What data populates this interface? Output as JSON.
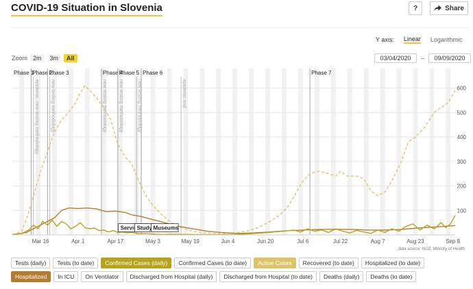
{
  "title": "COVID-19 Situation in Slovenia",
  "toolbar": {
    "help_label": "?",
    "share_label": "Share"
  },
  "yaxis": {
    "label": "Y axis:",
    "linear": "Linear",
    "log": "Logarithmic",
    "selected": "Linear"
  },
  "zoom": {
    "label": "Zoom",
    "options": [
      "2m",
      "3m",
      "All"
    ],
    "selected": "All"
  },
  "range": {
    "from": "03/04/2020",
    "sep": "–",
    "to": "09/09/2020"
  },
  "series_buttons": [
    {
      "label": "Tests (daily)",
      "on": false,
      "color": ""
    },
    {
      "label": "Tests (to date)",
      "on": false,
      "color": ""
    },
    {
      "label": "Confirmed Cases (daily)",
      "on": true,
      "color": "#b8a31c"
    },
    {
      "label": "Confirmed Cases (to date)",
      "on": false,
      "color": ""
    },
    {
      "label": "Active Cases",
      "on": true,
      "color": "#ddc46a"
    },
    {
      "label": "Recovered (to date)",
      "on": false,
      "color": ""
    },
    {
      "label": "Hospitalized (to date)",
      "on": false,
      "color": ""
    },
    {
      "label": "Hospitalized",
      "on": true,
      "color": "#b77b30"
    },
    {
      "label": "In ICU",
      "on": false,
      "color": ""
    },
    {
      "label": "On Ventilator",
      "on": false,
      "color": ""
    },
    {
      "label": "Discharged from Hospital (daily)",
      "on": false,
      "color": ""
    },
    {
      "label": "Discharged from Hospital (to date)",
      "on": false,
      "color": ""
    },
    {
      "label": "Deaths (daily)",
      "on": false,
      "color": ""
    },
    {
      "label": "Deaths (to date)",
      "on": false,
      "color": ""
    }
  ],
  "chart_data": {
    "type": "line",
    "x_start": "2020-03-04",
    "x_end": "2020-09-09",
    "ylim": [
      0,
      680
    ],
    "yticks": [
      100,
      200,
      300,
      400,
      500,
      600
    ],
    "xticks": [
      {
        "label": "Mar 16",
        "date": "2020-03-16"
      },
      {
        "label": "Apr 1",
        "date": "2020-04-01"
      },
      {
        "label": "Apr 17",
        "date": "2020-04-17"
      },
      {
        "label": "May 3",
        "date": "2020-05-03"
      },
      {
        "label": "May 19",
        "date": "2020-05-19"
      },
      {
        "label": "Jun 4",
        "date": "2020-06-04"
      },
      {
        "label": "Jun 20",
        "date": "2020-06-20"
      },
      {
        "label": "Jul 6",
        "date": "2020-07-06"
      },
      {
        "label": "Jul 22",
        "date": "2020-07-22"
      },
      {
        "label": "Aug 7",
        "date": "2020-08-07"
      },
      {
        "label": "Aug 23",
        "date": "2020-08-23"
      },
      {
        "label": "Sep 8",
        "date": "2020-09-08"
      }
    ],
    "source": "data source: NIJZ, Ministry of Health",
    "phases": [
      {
        "label": "Phase 1",
        "date": "2020-03-04"
      },
      {
        "label": "Phase 2",
        "date": "2020-03-12"
      },
      {
        "label": "Phase 3",
        "date": "2020-03-19"
      },
      {
        "label": "Phase 4",
        "date": "2020-04-11"
      },
      {
        "label": "Phase 5",
        "date": "2020-04-18"
      },
      {
        "label": "Phase 6",
        "date": "2020-04-28"
      },
      {
        "label": "Phase 7",
        "date": "2020-07-09"
      }
    ],
    "event_lines": [
      {
        "label": "epidemic, new testing methodology",
        "date": "2020-03-13"
      },
      {
        "label": "new testing methodology",
        "date": "2020-03-20"
      },
      {
        "label": "new testing methodology",
        "date": "2020-04-11"
      },
      {
        "label": "new testing methodology",
        "date": "2020-04-18"
      },
      {
        "label": "new testing methodology",
        "date": "2020-04-26"
      },
      {
        "label": "epidemic end",
        "date": "2020-05-15"
      }
    ],
    "reopen_labels": [
      {
        "label": "Services",
        "date": "2020-04-20"
      },
      {
        "label": "Study",
        "date": "2020-04-27"
      },
      {
        "label": "Museums",
        "date": "2020-05-04"
      }
    ],
    "series": [
      {
        "name": "Active Cases",
        "color": "#ddc46a",
        "dash": true,
        "points": [
          [
            "2020-03-04",
            0
          ],
          [
            "2020-03-08",
            15
          ],
          [
            "2020-03-11",
            90
          ],
          [
            "2020-03-13",
            160
          ],
          [
            "2020-03-16",
            260
          ],
          [
            "2020-03-19",
            340
          ],
          [
            "2020-03-22",
            420
          ],
          [
            "2020-03-25",
            470
          ],
          [
            "2020-03-28",
            500
          ],
          [
            "2020-03-31",
            540
          ],
          [
            "2020-04-02",
            580
          ],
          [
            "2020-04-04",
            610
          ],
          [
            "2020-04-06",
            590
          ],
          [
            "2020-04-09",
            560
          ],
          [
            "2020-04-12",
            520
          ],
          [
            "2020-04-15",
            470
          ],
          [
            "2020-04-18",
            370
          ],
          [
            "2020-04-21",
            320
          ],
          [
            "2020-04-24",
            290
          ],
          [
            "2020-04-27",
            220
          ],
          [
            "2020-04-30",
            160
          ],
          [
            "2020-05-03",
            120
          ],
          [
            "2020-05-07",
            80
          ],
          [
            "2020-05-11",
            50
          ],
          [
            "2020-05-15",
            30
          ],
          [
            "2020-05-20",
            15
          ],
          [
            "2020-05-25",
            8
          ],
          [
            "2020-06-01",
            5
          ],
          [
            "2020-06-07",
            8
          ],
          [
            "2020-06-12",
            15
          ],
          [
            "2020-06-17",
            30
          ],
          [
            "2020-06-22",
            55
          ],
          [
            "2020-06-26",
            80
          ],
          [
            "2020-06-30",
            120
          ],
          [
            "2020-07-03",
            170
          ],
          [
            "2020-07-06",
            220
          ],
          [
            "2020-07-09",
            250
          ],
          [
            "2020-07-13",
            260
          ],
          [
            "2020-07-17",
            250
          ],
          [
            "2020-07-20",
            240
          ],
          [
            "2020-07-22",
            260
          ],
          [
            "2020-07-25",
            240
          ],
          [
            "2020-07-29",
            240
          ],
          [
            "2020-08-01",
            230
          ],
          [
            "2020-08-04",
            180
          ],
          [
            "2020-08-07",
            160
          ],
          [
            "2020-08-10",
            175
          ],
          [
            "2020-08-13",
            220
          ],
          [
            "2020-08-17",
            300
          ],
          [
            "2020-08-20",
            380
          ],
          [
            "2020-08-23",
            400
          ],
          [
            "2020-08-27",
            440
          ],
          [
            "2020-08-31",
            500
          ],
          [
            "2020-09-03",
            520
          ],
          [
            "2020-09-06",
            540
          ],
          [
            "2020-09-09",
            590
          ]
        ]
      },
      {
        "name": "Hospitalized",
        "color": "#b77b30",
        "dash": false,
        "points": [
          [
            "2020-03-04",
            0
          ],
          [
            "2020-03-10",
            10
          ],
          [
            "2020-03-14",
            30
          ],
          [
            "2020-03-18",
            50
          ],
          [
            "2020-03-22",
            70
          ],
          [
            "2020-03-25",
            100
          ],
          [
            "2020-03-28",
            110
          ],
          [
            "2020-04-01",
            108
          ],
          [
            "2020-04-05",
            110
          ],
          [
            "2020-04-09",
            106
          ],
          [
            "2020-04-13",
            95
          ],
          [
            "2020-04-17",
            97
          ],
          [
            "2020-04-21",
            92
          ],
          [
            "2020-04-24",
            82
          ],
          [
            "2020-04-28",
            75
          ],
          [
            "2020-05-02",
            65
          ],
          [
            "2020-05-06",
            55
          ],
          [
            "2020-05-10",
            45
          ],
          [
            "2020-05-14",
            35
          ],
          [
            "2020-05-20",
            25
          ],
          [
            "2020-05-26",
            15
          ],
          [
            "2020-06-01",
            10
          ],
          [
            "2020-06-08",
            6
          ],
          [
            "2020-06-15",
            8
          ],
          [
            "2020-06-22",
            12
          ],
          [
            "2020-06-29",
            17
          ],
          [
            "2020-07-06",
            20
          ],
          [
            "2020-07-13",
            22
          ],
          [
            "2020-07-20",
            23
          ],
          [
            "2020-07-27",
            22
          ],
          [
            "2020-08-03",
            20
          ],
          [
            "2020-08-10",
            20
          ],
          [
            "2020-08-17",
            22
          ],
          [
            "2020-08-24",
            28
          ],
          [
            "2020-08-31",
            32
          ],
          [
            "2020-09-09",
            38
          ]
        ]
      },
      {
        "name": "Confirmed Cases (daily)",
        "color": "#b8a31c",
        "dash": false,
        "points": [
          [
            "2020-03-04",
            2
          ],
          [
            "2020-03-08",
            6
          ],
          [
            "2020-03-11",
            20
          ],
          [
            "2020-03-13",
            40
          ],
          [
            "2020-03-15",
            25
          ],
          [
            "2020-03-17",
            55
          ],
          [
            "2020-03-19",
            40
          ],
          [
            "2020-03-21",
            60
          ],
          [
            "2020-03-23",
            35
          ],
          [
            "2020-03-25",
            55
          ],
          [
            "2020-03-27",
            45
          ],
          [
            "2020-03-29",
            25
          ],
          [
            "2020-03-31",
            35
          ],
          [
            "2020-04-02",
            50
          ],
          [
            "2020-04-04",
            30
          ],
          [
            "2020-04-06",
            25
          ],
          [
            "2020-04-08",
            28
          ],
          [
            "2020-04-10",
            18
          ],
          [
            "2020-04-12",
            20
          ],
          [
            "2020-04-14",
            12
          ],
          [
            "2020-04-16",
            18
          ],
          [
            "2020-04-18",
            10
          ],
          [
            "2020-04-20",
            12
          ],
          [
            "2020-04-22",
            8
          ],
          [
            "2020-04-24",
            10
          ],
          [
            "2020-04-27",
            5
          ],
          [
            "2020-04-30",
            6
          ],
          [
            "2020-05-04",
            3
          ],
          [
            "2020-05-08",
            2
          ],
          [
            "2020-05-12",
            3
          ],
          [
            "2020-05-18",
            2
          ],
          [
            "2020-05-25",
            1
          ],
          [
            "2020-06-01",
            1
          ],
          [
            "2020-06-08",
            2
          ],
          [
            "2020-06-14",
            5
          ],
          [
            "2020-06-19",
            8
          ],
          [
            "2020-06-24",
            12
          ],
          [
            "2020-06-28",
            15
          ],
          [
            "2020-07-02",
            20
          ],
          [
            "2020-07-05",
            12
          ],
          [
            "2020-07-08",
            25
          ],
          [
            "2020-07-11",
            15
          ],
          [
            "2020-07-14",
            20
          ],
          [
            "2020-07-17",
            10
          ],
          [
            "2020-07-20",
            25
          ],
          [
            "2020-07-23",
            15
          ],
          [
            "2020-07-26",
            8
          ],
          [
            "2020-07-29",
            18
          ],
          [
            "2020-08-01",
            12
          ],
          [
            "2020-08-04",
            6
          ],
          [
            "2020-08-07",
            20
          ],
          [
            "2020-08-10",
            10
          ],
          [
            "2020-08-13",
            25
          ],
          [
            "2020-08-16",
            15
          ],
          [
            "2020-08-19",
            35
          ],
          [
            "2020-08-22",
            45
          ],
          [
            "2020-08-25",
            20
          ],
          [
            "2020-08-28",
            40
          ],
          [
            "2020-08-31",
            25
          ],
          [
            "2020-09-03",
            50
          ],
          [
            "2020-09-05",
            30
          ],
          [
            "2020-09-07",
            45
          ],
          [
            "2020-09-09",
            80
          ]
        ]
      }
    ]
  }
}
